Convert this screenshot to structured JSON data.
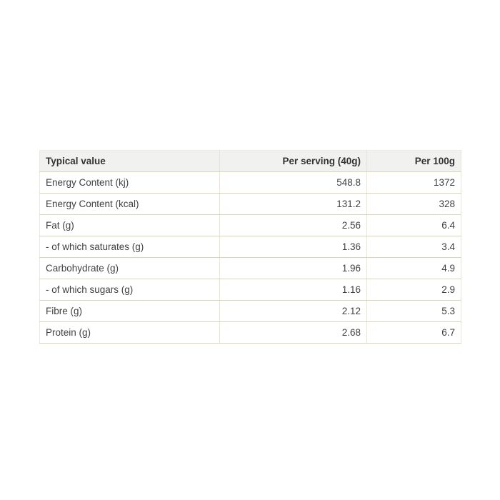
{
  "colors": {
    "page_background": "#ffffff",
    "header_background": "#f1f1ef",
    "row_border": "#d9d5b6",
    "column_divider": "#e8e5d6",
    "header_text": "#333333",
    "body_text": "#414141"
  },
  "table": {
    "columns": [
      "Typical value",
      "Per serving (40g)",
      "Per 100g"
    ],
    "rows": [
      {
        "label": "Energy Content (kj)",
        "per_serving": "548.8",
        "per_100g": "1372"
      },
      {
        "label": "Energy Content (kcal)",
        "per_serving": "131.2",
        "per_100g": "328"
      },
      {
        "label": "Fat (g)",
        "per_serving": "2.56",
        "per_100g": "6.4"
      },
      {
        "label": "- of which saturates (g)",
        "per_serving": "1.36",
        "per_100g": "3.4"
      },
      {
        "label": "Carbohydrate (g)",
        "per_serving": "1.96",
        "per_100g": "4.9"
      },
      {
        "label": "- of which sugars (g)",
        "per_serving": "1.16",
        "per_100g": "2.9"
      },
      {
        "label": "Fibre (g)",
        "per_serving": "2.12",
        "per_100g": "5.3"
      },
      {
        "label": "Protein (g)",
        "per_serving": "2.68",
        "per_100g": "6.7"
      }
    ]
  }
}
